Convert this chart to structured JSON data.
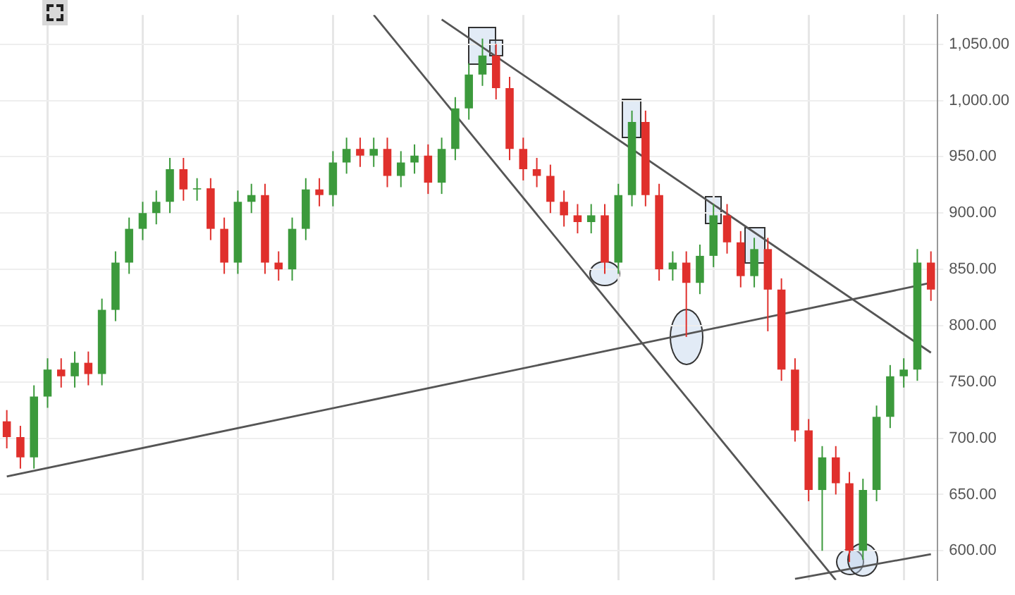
{
  "chart_data": {
    "type": "candlestick",
    "categories": [
      null,
      null,
      null,
      null,
      null,
      null,
      null,
      null,
      null,
      null,
      null,
      null,
      null,
      null,
      null,
      null,
      null,
      null,
      null,
      null,
      null,
      null,
      null,
      null,
      null,
      null,
      null,
      null,
      null,
      null,
      null,
      null,
      null,
      null,
      null,
      null,
      null,
      null,
      null,
      null,
      null,
      null,
      null,
      null,
      null,
      null,
      null,
      null,
      null,
      null,
      null,
      null,
      null,
      null,
      null,
      null,
      null,
      null,
      null,
      null,
      null,
      null,
      null,
      null,
      null,
      null,
      null,
      null,
      null
    ],
    "ohlc": [
      [
        715,
        725,
        691,
        701
      ],
      [
        701,
        711,
        673,
        683
      ],
      [
        683,
        747,
        673,
        737
      ],
      [
        737,
        771,
        727,
        761
      ],
      [
        761,
        771,
        745,
        755
      ],
      [
        755,
        777,
        745,
        767
      ],
      [
        767,
        777,
        747,
        757
      ],
      [
        757,
        824,
        747,
        814
      ],
      [
        814,
        866,
        804,
        856
      ],
      [
        856,
        896,
        846,
        886
      ],
      [
        886,
        910,
        876,
        900
      ],
      [
        900,
        920,
        890,
        910
      ],
      [
        910,
        949,
        900,
        939
      ],
      [
        939,
        949,
        911,
        921
      ],
      [
        921,
        931,
        911,
        922
      ],
      [
        922,
        931,
        876,
        886
      ],
      [
        886,
        896,
        846,
        856
      ],
      [
        856,
        920,
        846,
        910
      ],
      [
        910,
        926,
        900,
        916
      ],
      [
        916,
        926,
        846,
        856
      ],
      [
        856,
        866,
        840,
        850
      ],
      [
        850,
        896,
        840,
        886
      ],
      [
        886,
        931,
        876,
        921
      ],
      [
        921,
        931,
        906,
        916
      ],
      [
        916,
        955,
        906,
        945
      ],
      [
        945,
        967,
        935,
        957
      ],
      [
        957,
        967,
        941,
        951
      ],
      [
        951,
        967,
        941,
        957
      ],
      [
        957,
        967,
        923,
        933
      ],
      [
        933,
        955,
        923,
        945
      ],
      [
        945,
        961,
        935,
        951
      ],
      [
        951,
        961,
        917,
        927
      ],
      [
        927,
        967,
        917,
        957
      ],
      [
        957,
        1003,
        947,
        993
      ],
      [
        993,
        1033,
        983,
        1023
      ],
      [
        1023,
        1055,
        1013,
        1040
      ],
      [
        1040,
        1050,
        1001,
        1011
      ],
      [
        1011,
        1021,
        947,
        957
      ],
      [
        957,
        967,
        929,
        939
      ],
      [
        939,
        949,
        923,
        933
      ],
      [
        933,
        943,
        900,
        910
      ],
      [
        910,
        920,
        888,
        898
      ],
      [
        898,
        908,
        882,
        892
      ],
      [
        892,
        908,
        882,
        898
      ],
      [
        898,
        908,
        846,
        856
      ],
      [
        856,
        926,
        846,
        916
      ],
      [
        916,
        991,
        906,
        981
      ],
      [
        981,
        991,
        906,
        916
      ],
      [
        916,
        926,
        840,
        850
      ],
      [
        850,
        866,
        840,
        856
      ],
      [
        856,
        866,
        790,
        838
      ],
      [
        838,
        872,
        828,
        862
      ],
      [
        862,
        908,
        852,
        898
      ],
      [
        898,
        908,
        864,
        874
      ],
      [
        874,
        884,
        834,
        844
      ],
      [
        844,
        878,
        834,
        868
      ],
      [
        868,
        878,
        795,
        832
      ],
      [
        832,
        842,
        751,
        761
      ],
      [
        761,
        771,
        697,
        707
      ],
      [
        707,
        717,
        644,
        654
      ],
      [
        654,
        693,
        600,
        683
      ],
      [
        683,
        693,
        650,
        660
      ],
      [
        660,
        670,
        590,
        600
      ],
      [
        600,
        664,
        592,
        654
      ],
      [
        654,
        729,
        644,
        719
      ],
      [
        719,
        765,
        709,
        755
      ],
      [
        755,
        771,
        745,
        761
      ],
      [
        761,
        868,
        751,
        856
      ],
      [
        856,
        866,
        822,
        832
      ]
    ],
    "series": [
      {
        "type": "line",
        "color": "#555555",
        "values": [
          666,
          null,
          null,
          null,
          null,
          null,
          null,
          null,
          null,
          null,
          null,
          null,
          null,
          null,
          null,
          null,
          null,
          null,
          null,
          null,
          null,
          null,
          null,
          null,
          null,
          null,
          null,
          null,
          null,
          null,
          null,
          null,
          null,
          null,
          null,
          null,
          null,
          null,
          null,
          null,
          null,
          null,
          null,
          null,
          null,
          null,
          null,
          null,
          null,
          null,
          null,
          null,
          null,
          null,
          null,
          null,
          null,
          null,
          null,
          null,
          null,
          null,
          null,
          null,
          null,
          null,
          null,
          null,
          838
        ]
      },
      {
        "type": "line",
        "color": "#555555",
        "values": [
          null,
          null,
          null,
          null,
          null,
          null,
          null,
          null,
          null,
          null,
          null,
          null,
          null,
          null,
          null,
          null,
          null,
          null,
          null,
          null,
          null,
          null,
          null,
          null,
          null,
          null,
          null,
          1076,
          null,
          null,
          null,
          null,
          null,
          null,
          null,
          null,
          null,
          null,
          null,
          null,
          null,
          null,
          null,
          null,
          null,
          null,
          null,
          null,
          null,
          null,
          null,
          null,
          null,
          null,
          null,
          null,
          null,
          null,
          null,
          null,
          null,
          574,
          null,
          null,
          null,
          null,
          null,
          null,
          null
        ]
      },
      {
        "type": "line",
        "color": "#555555",
        "values": [
          null,
          null,
          null,
          null,
          null,
          null,
          null,
          null,
          null,
          null,
          null,
          null,
          null,
          null,
          null,
          null,
          null,
          null,
          null,
          null,
          null,
          null,
          null,
          null,
          null,
          null,
          null,
          null,
          null,
          null,
          null,
          null,
          1072,
          null,
          null,
          null,
          null,
          null,
          null,
          null,
          null,
          null,
          null,
          null,
          null,
          null,
          null,
          null,
          null,
          null,
          null,
          null,
          null,
          null,
          null,
          null,
          null,
          null,
          null,
          null,
          null,
          null,
          null,
          null,
          null,
          null,
          null,
          null,
          776
        ]
      },
      {
        "type": "line",
        "color": "#555555",
        "values": [
          null,
          null,
          null,
          null,
          null,
          null,
          null,
          null,
          null,
          null,
          null,
          null,
          null,
          null,
          null,
          null,
          null,
          null,
          null,
          null,
          null,
          null,
          null,
          null,
          null,
          null,
          null,
          null,
          null,
          null,
          null,
          null,
          null,
          null,
          null,
          null,
          null,
          null,
          null,
          null,
          null,
          null,
          null,
          null,
          null,
          null,
          null,
          null,
          null,
          null,
          null,
          null,
          null,
          null,
          null,
          null,
          null,
          null,
          575,
          null,
          null,
          null,
          null,
          null,
          null,
          null,
          null,
          null,
          597
        ]
      }
    ],
    "ylim": [
      574,
      1076
    ],
    "yticks": [
      {
        "value": 600,
        "label": "600.00"
      },
      {
        "value": 650,
        "label": "650.00"
      },
      {
        "value": 700,
        "label": "700.00"
      },
      {
        "value": 750,
        "label": "750.00"
      },
      {
        "value": 800,
        "label": "800.00"
      },
      {
        "value": 850,
        "label": "850.00"
      },
      {
        "value": 900,
        "label": "900.00"
      },
      {
        "value": 950,
        "label": "950.00"
      },
      {
        "value": 1000,
        "label": "1,000.00"
      },
      {
        "value": 1050,
        "label": "1,050.00"
      }
    ],
    "grid": true,
    "tick_labels": "y"
  }
}
